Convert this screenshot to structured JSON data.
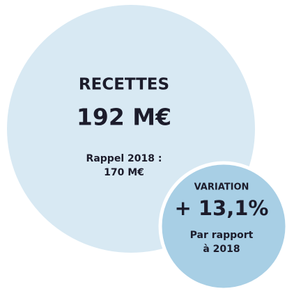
{
  "main": {
    "title": "RECETTES",
    "amount": "192 M€",
    "reminder": [
      "Rappel 2018 :",
      "170 M€"
    ]
  },
  "variation": {
    "title": "VARIATION",
    "amount": "+ 13,1%",
    "note": [
      "Par rapport",
      "à 2018"
    ]
  }
}
